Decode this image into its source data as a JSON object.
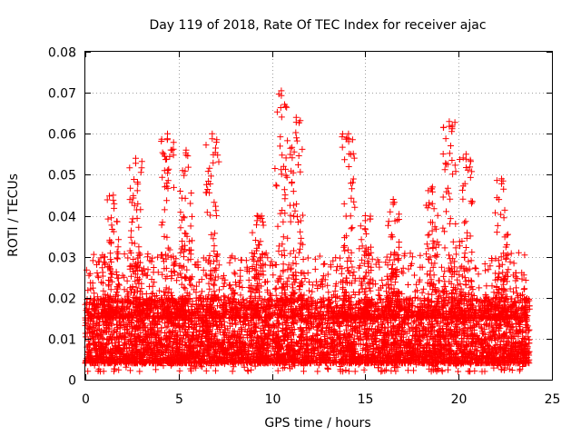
{
  "chart_data": {
    "type": "scatter",
    "title": "Day 119 of 2018, Rate Of TEC Index for receiver ajac",
    "xlabel": "GPS time / hours",
    "ylabel": "ROTI / TECUs",
    "xlim": [
      0,
      25
    ],
    "ylim": [
      0,
      0.08
    ],
    "xticks": [
      "0",
      "5",
      "10",
      "15",
      "20",
      "25"
    ],
    "yticks": [
      "0",
      "0.01",
      "0.02",
      "0.03",
      "0.04",
      "0.05",
      "0.06",
      "0.07",
      "0.08"
    ],
    "grid": true,
    "marker": "+",
    "color": "#ff0000",
    "series": [
      {
        "name": "ROTI",
        "baseline_range": [
          0.004,
          0.02
        ],
        "x_extent": [
          0,
          23.8
        ],
        "peaks": [
          {
            "x": 1.5,
            "y": 0.045
          },
          {
            "x": 2.7,
            "y": 0.054
          },
          {
            "x": 4.4,
            "y": 0.06
          },
          {
            "x": 5.4,
            "y": 0.056
          },
          {
            "x": 6.8,
            "y": 0.06
          },
          {
            "x": 9.2,
            "y": 0.04
          },
          {
            "x": 10.5,
            "y": 0.0705
          },
          {
            "x": 11.3,
            "y": 0.064
          },
          {
            "x": 14.1,
            "y": 0.06
          },
          {
            "x": 15.0,
            "y": 0.04
          },
          {
            "x": 16.5,
            "y": 0.044
          },
          {
            "x": 18.6,
            "y": 0.047
          },
          {
            "x": 19.5,
            "y": 0.063
          },
          {
            "x": 20.4,
            "y": 0.055
          },
          {
            "x": 22.3,
            "y": 0.049
          }
        ]
      }
    ]
  }
}
